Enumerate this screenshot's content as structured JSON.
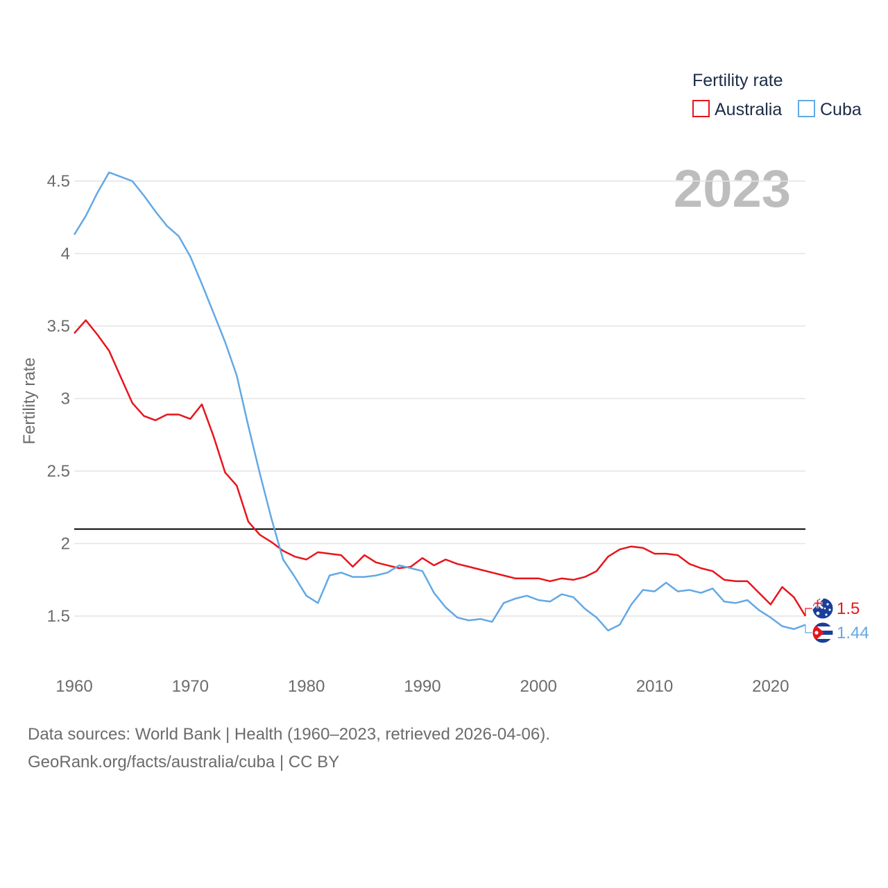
{
  "chart_data": {
    "type": "line",
    "title": "Fertility rate",
    "ylabel": "Fertility rate",
    "xlabel": "",
    "current_year_label": "2023",
    "xlim": [
      1960,
      2023
    ],
    "ylim": [
      1.13,
      4.7
    ],
    "x_ticks": [
      1960,
      1970,
      1980,
      1990,
      2000,
      2010,
      2020
    ],
    "y_ticks": [
      1.5,
      2,
      2.5,
      3,
      3.5,
      4,
      4.5
    ],
    "y_tick_labels": [
      "1.5",
      "2",
      "2.5",
      "3",
      "3.5",
      "4",
      "4.5"
    ],
    "x_tick_labels": [
      "1960",
      "1970",
      "1980",
      "1990",
      "2000",
      "2010",
      "2020"
    ],
    "reference_line": {
      "value": 2.1,
      "color": "#000000"
    },
    "legend": {
      "title": "Fertility rate",
      "position": "top-right"
    },
    "x": [
      1960,
      1961,
      1962,
      1963,
      1964,
      1965,
      1966,
      1967,
      1968,
      1969,
      1970,
      1971,
      1972,
      1973,
      1974,
      1975,
      1976,
      1977,
      1978,
      1979,
      1980,
      1981,
      1982,
      1983,
      1984,
      1985,
      1986,
      1987,
      1988,
      1989,
      1990,
      1991,
      1992,
      1993,
      1994,
      1995,
      1996,
      1997,
      1998,
      1999,
      2000,
      2001,
      2002,
      2003,
      2004,
      2005,
      2006,
      2007,
      2008,
      2009,
      2010,
      2011,
      2012,
      2013,
      2014,
      2015,
      2016,
      2017,
      2018,
      2019,
      2020,
      2021,
      2022,
      2023
    ],
    "series": [
      {
        "name": "Australia",
        "color": "#e8141b",
        "end_label": "1.5",
        "flag": "australia-flag",
        "values": [
          3.45,
          3.54,
          3.44,
          3.33,
          3.15,
          2.97,
          2.88,
          2.85,
          2.89,
          2.89,
          2.86,
          2.96,
          2.74,
          2.49,
          2.4,
          2.15,
          2.06,
          2.01,
          1.95,
          1.91,
          1.89,
          1.94,
          1.93,
          1.92,
          1.84,
          1.92,
          1.87,
          1.85,
          1.83,
          1.84,
          1.9,
          1.85,
          1.89,
          1.86,
          1.84,
          1.82,
          1.8,
          1.78,
          1.76,
          1.76,
          1.76,
          1.74,
          1.76,
          1.75,
          1.77,
          1.81,
          1.91,
          1.96,
          1.98,
          1.97,
          1.93,
          1.93,
          1.92,
          1.86,
          1.83,
          1.81,
          1.75,
          1.74,
          1.74,
          1.66,
          1.58,
          1.7,
          1.63,
          1.5
        ]
      },
      {
        "name": "Cuba",
        "color": "#62a8e5",
        "end_label": "1.44",
        "flag": "cuba-flag",
        "values": [
          4.13,
          4.26,
          4.42,
          4.56,
          4.53,
          4.5,
          4.4,
          4.29,
          4.19,
          4.12,
          3.98,
          3.79,
          3.59,
          3.39,
          3.16,
          2.81,
          2.48,
          2.17,
          1.89,
          1.77,
          1.64,
          1.59,
          1.78,
          1.8,
          1.77,
          1.77,
          1.78,
          1.8,
          1.85,
          1.83,
          1.81,
          1.66,
          1.56,
          1.49,
          1.47,
          1.48,
          1.46,
          1.59,
          1.62,
          1.64,
          1.61,
          1.6,
          1.65,
          1.63,
          1.55,
          1.49,
          1.4,
          1.44,
          1.58,
          1.68,
          1.67,
          1.73,
          1.67,
          1.68,
          1.66,
          1.69,
          1.6,
          1.59,
          1.61,
          1.54,
          1.49,
          1.43,
          1.41,
          1.44
        ]
      }
    ]
  },
  "footer": {
    "line1": "Data sources: World Bank | Health (1960–2023, retrieved 2026-04-06).",
    "line2": "GeoRank.org/facts/australia/cuba | CC BY"
  }
}
